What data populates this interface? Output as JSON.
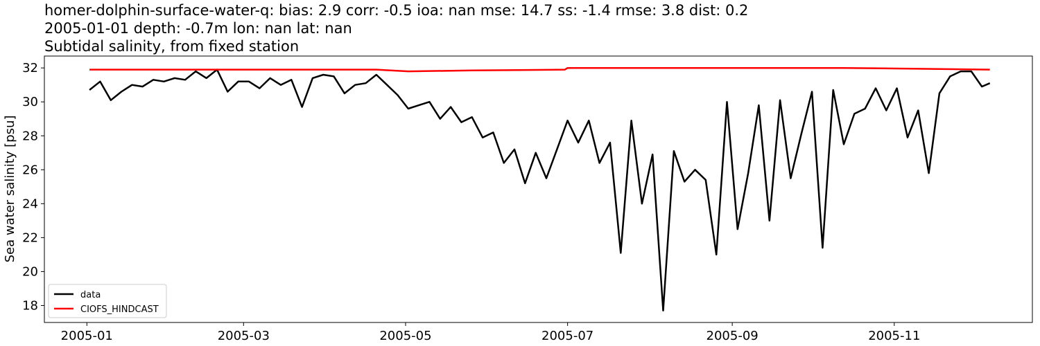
{
  "chart_data": {
    "type": "line",
    "title": [
      "homer-dolphin-surface-water-q: bias: 2.9  corr: -0.5  ioa: nan  mse: 14.7  ss: -1.4  rmse: 3.8  dist: 0.2",
      "2005-01-01 depth: -0.7m lon: nan lat: nan",
      "Subtidal salinity, from fixed station"
    ],
    "ylabel": "Sea water salinity [psu]",
    "xlim": [
      "2004-12-16",
      "2005-12-23"
    ],
    "xticks": [
      {
        "value": "2005-01-01",
        "label": "2005-01"
      },
      {
        "value": "2005-03-01",
        "label": "2005-03"
      },
      {
        "value": "2005-05-01",
        "label": "2005-05"
      },
      {
        "value": "2005-07-01",
        "label": "2005-07"
      },
      {
        "value": "2005-09-01",
        "label": "2005-09"
      },
      {
        "value": "2005-11-01",
        "label": "2005-11"
      }
    ],
    "ylim": [
      17.0,
      32.7
    ],
    "yticks": [
      18,
      20,
      22,
      24,
      26,
      28,
      30,
      32
    ],
    "legend": "lower left",
    "series": [
      {
        "name": "data",
        "color": "#000000",
        "x": [
          "2005-01-02",
          "2005-01-06",
          "2005-01-10",
          "2005-01-14",
          "2005-01-18",
          "2005-01-22",
          "2005-01-26",
          "2005-01-30",
          "2005-02-03",
          "2005-02-07",
          "2005-02-11",
          "2005-02-15",
          "2005-02-19",
          "2005-02-23",
          "2005-02-27",
          "2005-03-03",
          "2005-03-07",
          "2005-03-11",
          "2005-03-15",
          "2005-03-19",
          "2005-03-23",
          "2005-03-27",
          "2005-03-31",
          "2005-04-04",
          "2005-04-08",
          "2005-04-12",
          "2005-04-16",
          "2005-04-20",
          "2005-04-24",
          "2005-04-28",
          "2005-05-02",
          "2005-05-06",
          "2005-05-10",
          "2005-05-14",
          "2005-05-18",
          "2005-05-22",
          "2005-05-26",
          "2005-05-30",
          "2005-06-03",
          "2005-06-07",
          "2005-06-11",
          "2005-06-15",
          "2005-06-19",
          "2005-06-23",
          "2005-06-27",
          "2005-07-01",
          "2005-07-05",
          "2005-07-09",
          "2005-07-13",
          "2005-07-17",
          "2005-07-21",
          "2005-07-25",
          "2005-07-29",
          "2005-08-02",
          "2005-08-06",
          "2005-08-10",
          "2005-08-14",
          "2005-08-18",
          "2005-08-22",
          "2005-08-26",
          "2005-08-30",
          "2005-09-03",
          "2005-09-07",
          "2005-09-11",
          "2005-09-15",
          "2005-09-19",
          "2005-09-23",
          "2005-09-27",
          "2005-10-01",
          "2005-10-05",
          "2005-10-09",
          "2005-10-13",
          "2005-10-17",
          "2005-10-21",
          "2005-10-25",
          "2005-10-29",
          "2005-11-02",
          "2005-11-06",
          "2005-11-10",
          "2005-11-14",
          "2005-11-18",
          "2005-11-22",
          "2005-11-26",
          "2005-11-30",
          "2005-12-04",
          "2005-12-07"
        ],
        "values": [
          30.7,
          31.2,
          30.1,
          30.6,
          31.0,
          30.9,
          31.3,
          31.2,
          31.4,
          31.3,
          31.8,
          31.4,
          31.9,
          30.6,
          31.2,
          31.2,
          30.8,
          31.4,
          31.0,
          31.3,
          29.7,
          31.4,
          31.6,
          31.5,
          30.5,
          31.0,
          31.1,
          31.6,
          31.0,
          30.4,
          29.6,
          29.8,
          30.0,
          29.0,
          29.7,
          28.8,
          29.1,
          27.9,
          28.2,
          26.4,
          27.2,
          25.2,
          27.0,
          25.5,
          27.2,
          28.9,
          27.6,
          28.9,
          26.4,
          27.6,
          21.1,
          28.9,
          24.0,
          26.9,
          17.7,
          27.1,
          25.3,
          26.0,
          25.4,
          21.0,
          30.0,
          22.5,
          25.8,
          29.8,
          23.0,
          30.1,
          25.5,
          28.1,
          30.6,
          21.4,
          30.7,
          27.5,
          29.3,
          29.6,
          30.8,
          29.5,
          30.8,
          27.9,
          29.5,
          25.8,
          30.5,
          31.5,
          31.8,
          31.8,
          30.9,
          31.1
        ]
      },
      {
        "name": "CIOFS_HINDCAST",
        "color": "#ff0000",
        "x": [
          "2005-01-02",
          "2005-02-15",
          "2005-03-31",
          "2005-04-20",
          "2005-05-02",
          "2005-05-26",
          "2005-06-30",
          "2005-07-01",
          "2005-08-02",
          "2005-09-01",
          "2005-10-13",
          "2005-11-10",
          "2005-12-07"
        ],
        "values": [
          31.9,
          31.9,
          31.9,
          31.9,
          31.8,
          31.85,
          31.9,
          32.0,
          32.0,
          32.0,
          32.0,
          31.95,
          31.9
        ]
      }
    ]
  }
}
